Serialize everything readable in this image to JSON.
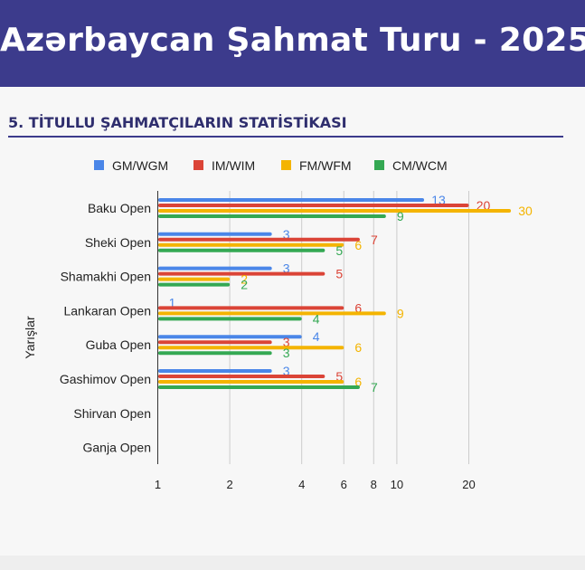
{
  "header": {
    "title": "Azərbaycan Şahmat Turu - 2025"
  },
  "section": {
    "title": "5. TİTULLU ŞAHMATÇILARIN STATİSTİKASI"
  },
  "chart_data": {
    "type": "bar",
    "orientation": "horizontal",
    "x_scale": "log",
    "xlim": [
      1,
      30
    ],
    "xticks": [
      1,
      2,
      4,
      6,
      8,
      10,
      20
    ],
    "xlabel": "",
    "ylabel": "Yarışlar",
    "legend": "top",
    "grid": true,
    "categories": [
      "Baku Open",
      "Sheki Open",
      "Shamakhi Open",
      "Lankaran Open",
      "Guba Open",
      "Gashimov Open",
      "Shirvan Open",
      "Ganja Open"
    ],
    "series": [
      {
        "name": "GM/WGM",
        "color": "#4a86e8",
        "values": [
          13,
          3,
          3,
          1,
          4,
          3,
          null,
          null
        ]
      },
      {
        "name": "IM/WIM",
        "color": "#db4437",
        "values": [
          20,
          7,
          5,
          6,
          3,
          5,
          null,
          null
        ]
      },
      {
        "name": "FM/WFM",
        "color": "#f4b400",
        "values": [
          30,
          6,
          2,
          9,
          6,
          6,
          null,
          null
        ]
      },
      {
        "name": "CM/WCM",
        "color": "#34a853",
        "values": [
          9,
          5,
          2,
          4,
          3,
          7,
          null,
          null
        ]
      }
    ]
  }
}
